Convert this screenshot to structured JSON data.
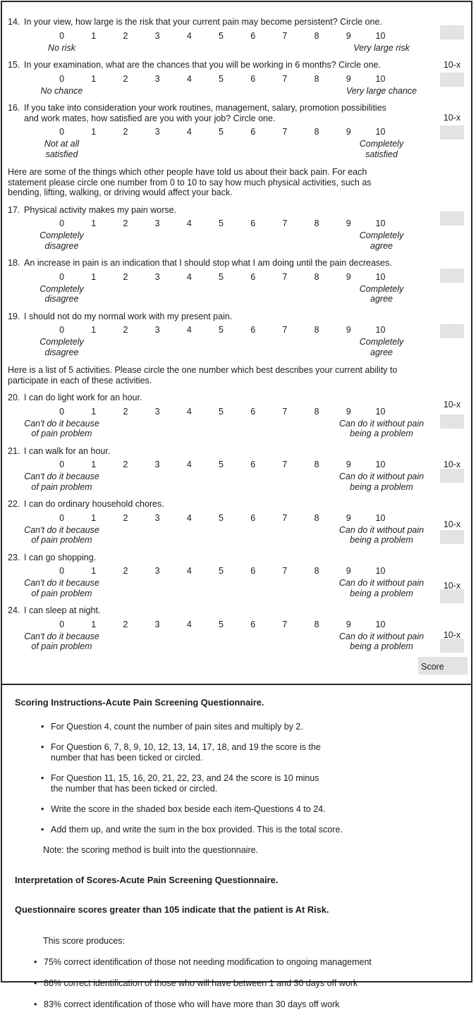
{
  "questionnaire": {
    "scale": [
      "0",
      "1",
      "2",
      "3",
      "4",
      "5",
      "6",
      "7",
      "8",
      "9",
      "10"
    ],
    "side_label_text": "10-x",
    "score_label": "Score",
    "questions": [
      {
        "id": 14,
        "number": "14.",
        "text": "In your view, how large is the risk that your current pain may become persistent? Circle one.",
        "left_anchor": "No risk",
        "right_anchor": "Very large risk",
        "side_label": "",
        "has_box": true
      },
      {
        "id": 15,
        "number": "15.",
        "text": "In your examination, what are the chances that you will be working in 6 months? Circle one.",
        "left_anchor": "No chance",
        "right_anchor": "Very large chance",
        "side_label": "10-x",
        "has_box": true
      },
      {
        "id": 16,
        "number": "16.",
        "text": "If you take into consideration your work routines, management, salary, promotion possibilities\nand work mates, how satisfied are you with your job? Circle one.",
        "left_anchor": "Not at all\nsatisfied",
        "right_anchor": "Completely\nsatisfied",
        "side_label": "10-x",
        "has_box": true
      },
      {
        "id": 17,
        "number": "17.",
        "intro_before": "Here are some of the things which other people have told us about their back pain. For each\nstatement please circle one number from 0 to 10 to say how much physical activities, such as\nbending, lifting, walking, or driving would affect your back.",
        "text": "Physical activity makes my pain worse.",
        "left_anchor": "Completely\ndisagree",
        "right_anchor": "Completely\nagree",
        "side_label": "",
        "has_box": true
      },
      {
        "id": 18,
        "number": "18.",
        "text": "An increase in pain is an indication that I should stop what I am doing until the pain decreases.",
        "left_anchor": "Completely\ndisagree",
        "right_anchor": "Completely\nagree",
        "side_label": "",
        "has_box": true
      },
      {
        "id": 19,
        "number": "19.",
        "text": "I should not do my normal work with my present pain.",
        "left_anchor": "Completely\ndisagree",
        "right_anchor": "Completely\nagree",
        "side_label": "",
        "has_box": true
      },
      {
        "id": 20,
        "number": "20.",
        "intro_before": "Here is a list of 5 activities. Please circle the one number which best describes your current ability to\nparticipate in each of these activities.",
        "text": "I can do light work for an hour.",
        "left_anchor": "Can't do it because\nof pain problem",
        "right_anchor": "Can do it without pain\nbeing a problem",
        "side_label": "10-x",
        "has_box": true
      },
      {
        "id": 21,
        "number": "21.",
        "text": "I can walk for an hour.",
        "left_anchor": "Can't do it because\nof pain problem",
        "right_anchor": "Can do it without pain\nbeing a problem",
        "side_label": "10-x",
        "has_box": true
      },
      {
        "id": 22,
        "number": "22.",
        "text": "I can do ordinary household chores.",
        "left_anchor": "Can't do it because\nof pain problem",
        "right_anchor": "Can do it without pain\nbeing a problem",
        "side_label": "10-x",
        "has_box": true
      },
      {
        "id": 23,
        "number": "23.",
        "text": "I can go shopping.",
        "left_anchor": "Can't do it because\nof pain problem",
        "right_anchor": "Can do it without pain\nbeing a problem",
        "side_label": "10-x",
        "has_box": true
      },
      {
        "id": 24,
        "number": "24.",
        "text": "I can sleep at night.",
        "left_anchor": "Can't do it because\nof pain problem",
        "right_anchor": "Can do it without pain\nbeing a problem",
        "side_label": "10-x",
        "has_box": true
      }
    ]
  },
  "scoring": {
    "heading": "Scoring Instructions-Acute Pain Screening Questionnaire.",
    "bullets": [
      "For Question 4, count the number of pain sites and multiply by 2.",
      "For Question 6, 7, 8, 9, 10, 12, 13, 14, 17, 18, and 19 the score is the\nnumber that has been ticked or circled.",
      "For Question 11, 15, 16, 20, 21, 22, 23, and 24 the score is 10 minus\nthe number that has been ticked or circled.",
      "Write the score in the shaded box beside each item-Questions 4 to 24.",
      "Add them up, and write the sum in the box provided. This is the total score."
    ],
    "note": "Note: the scoring method is built into the questionnaire.",
    "interpretation_heading": "Interpretation of Scores-Acute Pain Screening Questionnaire.",
    "risk_heading": "Questionnaire scores greater than 105 indicate that the patient is At Risk.",
    "produces_intro": "This score produces:",
    "produces_bullets": [
      "75% correct identification of those not needing modification to ongoing management",
      "86% correct identification of those who will have between 1 and 30 days off work",
      "83% correct identification of those who will have more than 30 days off work"
    ]
  },
  "colors": {
    "shaded_box": "#e3e3e3",
    "border": "#2a2a2a"
  }
}
